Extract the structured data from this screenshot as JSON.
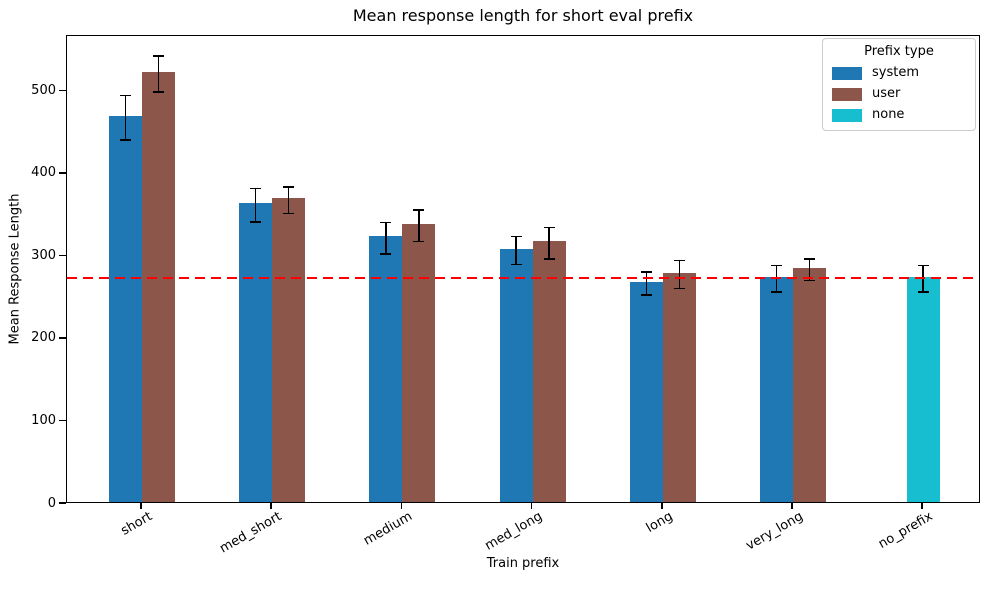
{
  "chart_data": {
    "type": "bar",
    "title": "Mean response length for short eval prefix",
    "xlabel": "Train prefix",
    "ylabel": "Mean Response Length",
    "categories": [
      "short",
      "med_short",
      "medium",
      "med_long",
      "long",
      "very_long",
      "no_prefix"
    ],
    "series": [
      {
        "name": "system",
        "color": "#1f77b4",
        "values": [
          468,
          362,
          322,
          307,
          267,
          273,
          null
        ],
        "errors": [
          27,
          20,
          19,
          17,
          14,
          16,
          null
        ]
      },
      {
        "name": "user",
        "color": "#8c564b",
        "values": [
          521,
          368,
          337,
          316,
          278,
          284,
          null
        ],
        "errors": [
          22,
          16,
          19,
          19,
          17,
          13,
          null
        ]
      },
      {
        "name": "none",
        "color": "#17becf",
        "values": [
          null,
          null,
          null,
          null,
          null,
          null,
          273
        ],
        "errors": [
          null,
          null,
          null,
          null,
          null,
          null,
          16
        ]
      }
    ],
    "yticks": [
      0,
      100,
      200,
      300,
      400,
      500
    ],
    "ylim": [
      0,
      567
    ],
    "x_tick_rotation": 30,
    "grid": false,
    "reference_line": {
      "value": 274,
      "color": "#ff0000",
      "style": "dashed"
    },
    "legend": {
      "title": "Prefix type",
      "position": "upper right"
    }
  }
}
